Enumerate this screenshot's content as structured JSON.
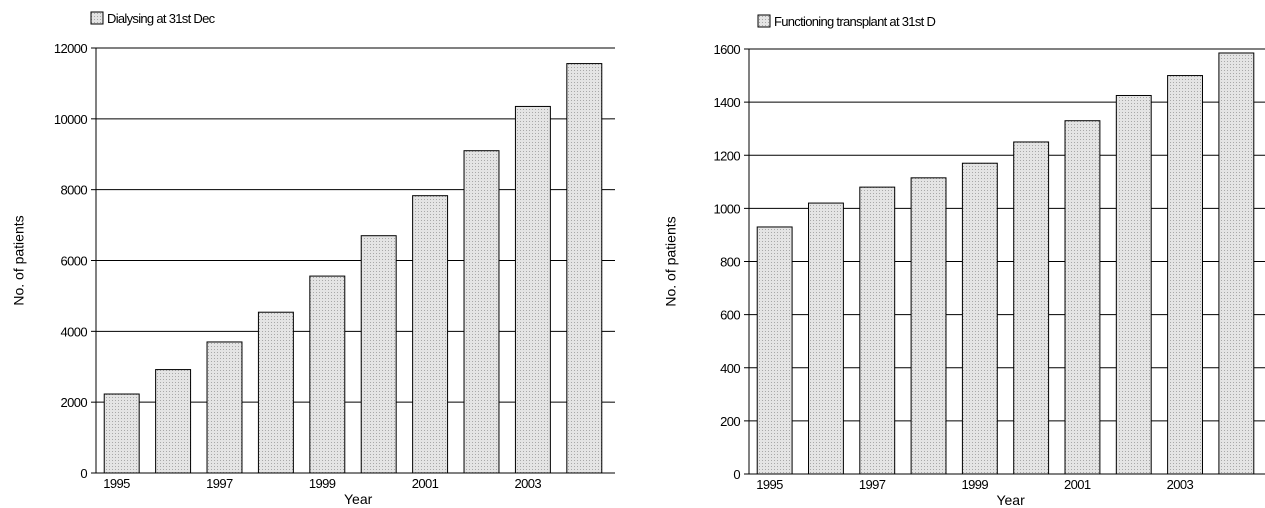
{
  "chart_data": [
    {
      "type": "bar",
      "categories": [
        "1995",
        "1996",
        "1997",
        "1998",
        "1999",
        "2000",
        "2001",
        "2002",
        "2003",
        "2004"
      ],
      "tick_labels": [
        "1995",
        "",
        "1997",
        "",
        "1999",
        "",
        "2001",
        "",
        "2003",
        ""
      ],
      "series": [
        {
          "name": "Dialysing at 31st Dec",
          "values": [
            2230,
            2920,
            3700,
            4540,
            5560,
            6700,
            7830,
            9100,
            10350,
            11560
          ],
          "color": "#dedede"
        }
      ],
      "xlabel": "Year",
      "ylabel": "No. of patients",
      "ylim": [
        0,
        12000
      ],
      "yticks": [
        0,
        2000,
        4000,
        6000,
        8000,
        10000,
        12000
      ],
      "grid": true,
      "legend": "top-left"
    },
    {
      "type": "bar",
      "categories": [
        "1995",
        "1996",
        "1997",
        "1998",
        "1999",
        "2000",
        "2001",
        "2002",
        "2003",
        "2004"
      ],
      "tick_labels": [
        "1995",
        "",
        "1997",
        "",
        "1999",
        "",
        "2001",
        "",
        "2003",
        ""
      ],
      "series": [
        {
          "name": "Functioning transplant at 31st D",
          "values": [
            930,
            1020,
            1080,
            1115,
            1170,
            1250,
            1330,
            1425,
            1500,
            1585
          ],
          "color": "#dedede"
        }
      ],
      "xlabel": "Year",
      "ylabel": "No. of patients",
      "ylim": [
        0,
        1600
      ],
      "yticks": [
        0,
        200,
        400,
        600,
        800,
        1000,
        1200,
        1400,
        1600
      ],
      "grid": true,
      "legend": "top-left"
    }
  ]
}
